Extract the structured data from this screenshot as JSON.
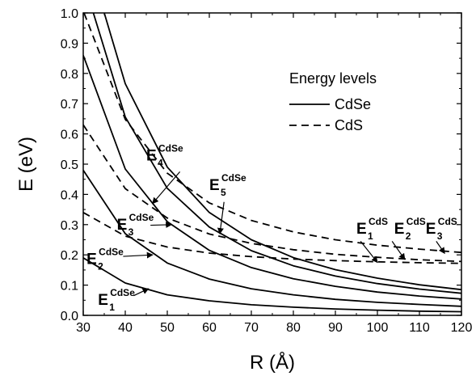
{
  "chart_data": {
    "type": "line",
    "xlabel": "R (Å)",
    "ylabel": "E (eV)",
    "xlim": [
      30,
      120
    ],
    "ylim": [
      0.0,
      1.0
    ],
    "xticks": [
      "30",
      "40",
      "50",
      "60",
      "70",
      "80",
      "90",
      "100",
      "110",
      "120"
    ],
    "yticks": [
      "0.0",
      "0.1",
      "0.2",
      "0.3",
      "0.4",
      "0.5",
      "0.6",
      "0.7",
      "0.8",
      "0.9",
      "1.0"
    ],
    "grid": false,
    "legend": {
      "title": "Energy levels",
      "placement": "top-right",
      "entries": [
        {
          "label": "CdSe",
          "style": "solid"
        },
        {
          "label": "CdS",
          "style": "dashed"
        }
      ]
    },
    "series": [
      {
        "label": "E1 CdSe",
        "style": "solid",
        "x": [
          30,
          40,
          50,
          60,
          70,
          80,
          90,
          100,
          110,
          120
        ],
        "y": [
          0.19,
          0.107,
          0.068,
          0.048,
          0.035,
          0.027,
          0.021,
          0.017,
          0.014,
          0.012
        ]
      },
      {
        "label": "E2 CdSe",
        "style": "solid",
        "x": [
          30,
          40,
          50,
          60,
          70,
          80,
          90,
          100,
          110,
          120
        ],
        "y": [
          0.48,
          0.27,
          0.173,
          0.12,
          0.088,
          0.068,
          0.053,
          0.043,
          0.036,
          0.03
        ]
      },
      {
        "label": "E3 CdSe",
        "style": "solid",
        "x": [
          30,
          40,
          50,
          60,
          70,
          80,
          90,
          100,
          110,
          120
        ],
        "y": [
          0.86,
          0.484,
          0.31,
          0.215,
          0.158,
          0.121,
          0.096,
          0.077,
          0.064,
          0.054
        ]
      },
      {
        "label": "E4 CdSe",
        "style": "solid",
        "x": [
          32.4,
          40,
          50,
          60,
          70,
          80,
          90,
          100,
          110,
          120
        ],
        "y": [
          1.0,
          0.656,
          0.42,
          0.292,
          0.214,
          0.164,
          0.13,
          0.105,
          0.087,
          0.073
        ]
      },
      {
        "label": "E5 CdSe",
        "style": "solid",
        "x": [
          35,
          40,
          50,
          60,
          70,
          80,
          90,
          100,
          110,
          120
        ],
        "y": [
          1.0,
          0.766,
          0.49,
          0.34,
          0.25,
          0.191,
          0.151,
          0.123,
          0.101,
          0.085
        ]
      },
      {
        "label": "E1 CdS",
        "style": "dashed",
        "x": [
          30,
          40,
          50,
          60,
          70,
          80,
          90,
          100,
          110,
          120
        ],
        "y": [
          0.34,
          0.262,
          0.226,
          0.206,
          0.194,
          0.186,
          0.181,
          0.177,
          0.174,
          0.172
        ]
      },
      {
        "label": "E2 CdS",
        "style": "dashed",
        "x": [
          30,
          40,
          50,
          60,
          70,
          80,
          90,
          100,
          110,
          120
        ],
        "y": [
          0.63,
          0.419,
          0.322,
          0.269,
          0.238,
          0.217,
          0.202,
          0.192,
          0.184,
          0.178
        ]
      },
      {
        "label": "E3 CdS",
        "style": "dashed",
        "x": [
          30.2,
          40,
          50,
          60,
          70,
          80,
          90,
          100,
          110,
          120
        ],
        "y": [
          1.0,
          0.648,
          0.47,
          0.372,
          0.314,
          0.276,
          0.25,
          0.232,
          0.219,
          0.208
        ]
      }
    ],
    "annotations": [
      {
        "base": "E",
        "sub": "1",
        "sup": "CdSe",
        "at": [
          33.5,
          0.035
        ],
        "arrow_from": [
          42.0,
          0.065
        ],
        "arrow_to": [
          45.5,
          0.088
        ]
      },
      {
        "base": "E",
        "sub": "2",
        "sup": "CdSe",
        "at": [
          30.8,
          0.17
        ],
        "arrow_from": [
          39.5,
          0.195
        ],
        "arrow_to": [
          46.5,
          0.2
        ]
      },
      {
        "base": "E",
        "sub": "3",
        "sup": "CdSe",
        "at": [
          38.0,
          0.283
        ],
        "arrow_from": [
          46.0,
          0.298
        ],
        "arrow_to": [
          51.0,
          0.3
        ]
      },
      {
        "base": "E",
        "sub": "4",
        "sup": "CdSe",
        "at": [
          45.0,
          0.512
        ],
        "arrow_from": [
          53.0,
          0.475
        ],
        "arrow_to": [
          46.5,
          0.37
        ]
      },
      {
        "base": "E",
        "sub": "5",
        "sup": "CdSe",
        "at": [
          60.0,
          0.415
        ],
        "arrow_from": [
          63.5,
          0.375
        ],
        "arrow_to": [
          62.5,
          0.27
        ]
      },
      {
        "base": "E",
        "sub": "1",
        "sup": "CdS",
        "at": [
          95.0,
          0.27
        ],
        "arrow_from": [
          96.0,
          0.245
        ],
        "arrow_to": [
          100.0,
          0.175
        ]
      },
      {
        "base": "E",
        "sub": "2",
        "sup": "CdS",
        "at": [
          104.0,
          0.27
        ],
        "arrow_from": [
          103.5,
          0.245
        ],
        "arrow_to": [
          106.5,
          0.185
        ]
      },
      {
        "base": "E",
        "sub": "3",
        "sup": "CdS",
        "at": [
          111.5,
          0.27
        ],
        "arrow_from": [
          114.0,
          0.245
        ],
        "arrow_to": [
          116.0,
          0.205
        ]
      }
    ]
  }
}
